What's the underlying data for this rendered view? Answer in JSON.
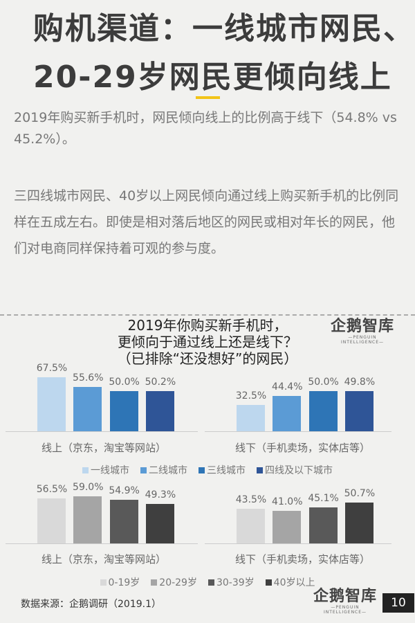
{
  "header": {
    "title_line1": "购机渠道：一线城市网民、",
    "title_line2": "20-29岁网民更倾向线上",
    "accent_color": "#f2c418"
  },
  "body": {
    "paragraph1": "2019年购买新手机时，网民倾向线上的比例高于线下（54.8% vs 45.2%）。",
    "paragraph2": "三四线城市网民、40岁以上网民倾向通过线上购买新手机的比例同样在五成左右。即使是相对落后地区的网民或相对年长的网民，他们对电商同样保持着可观的参与度。"
  },
  "chart_title": {
    "line1": "2019年你购买新手机时，",
    "line2": "更倾向于通过线上还是线下？",
    "line3": "（已排除“还没想好”的网民）"
  },
  "logo": {
    "name": "企鹅智库",
    "subtitle": "PENGUIN INTELLIGENCE"
  },
  "chart_data": [
    {
      "type": "bar",
      "title": "2019年你购买新手机时，更倾向于通过线上还是线下？（已排除“还没想好”的网民）",
      "categories": [
        "线上（京东，淘宝等网站）",
        "线下（手机卖场，实体店等）"
      ],
      "series": [
        {
          "name": "一线城市",
          "color": "#bdd7ee",
          "values": [
            67.5,
            32.5
          ],
          "labels": [
            "67.5%",
            "32.5%"
          ]
        },
        {
          "name": "二线城市",
          "color": "#5b9bd5",
          "values": [
            55.6,
            44.4
          ],
          "labels": [
            "55.6%",
            "44.4%"
          ]
        },
        {
          "name": "三线城市",
          "color": "#2e75b6",
          "values": [
            50.0,
            50.0
          ],
          "labels": [
            "50.0%",
            "50.0%"
          ]
        },
        {
          "name": "四线及以下城市",
          "color": "#2f5597",
          "values": [
            50.2,
            49.8
          ],
          "labels": [
            "50.2%",
            "49.8%"
          ]
        }
      ],
      "legend_position": "bottom",
      "grid": false,
      "ylim": [
        0,
        100
      ]
    },
    {
      "type": "bar",
      "categories": [
        "线上（京东，淘宝等网站）",
        "线下（手机卖场，实体店等）"
      ],
      "series": [
        {
          "name": "0-19岁",
          "color": "#d9d9d9",
          "values": [
            56.5,
            43.5
          ],
          "labels": [
            "56.5%",
            "43.5%"
          ]
        },
        {
          "name": "20-29岁",
          "color": "#a5a5a5",
          "values": [
            59.0,
            41.0
          ],
          "labels": [
            "59.0%",
            "41.0%"
          ]
        },
        {
          "name": "30-39岁",
          "color": "#595959",
          "values": [
            54.9,
            45.1
          ],
          "labels": [
            "54.9%",
            "45.1%"
          ]
        },
        {
          "name": "40岁以上",
          "color": "#3f3f3f",
          "values": [
            49.3,
            50.7
          ],
          "labels": [
            "49.3%",
            "50.7%"
          ]
        }
      ],
      "legend_position": "bottom",
      "grid": false,
      "ylim": [
        0,
        100
      ]
    }
  ],
  "footer": {
    "source": "数据来源：企鹅调研（2019.1）",
    "page_number": "10"
  }
}
